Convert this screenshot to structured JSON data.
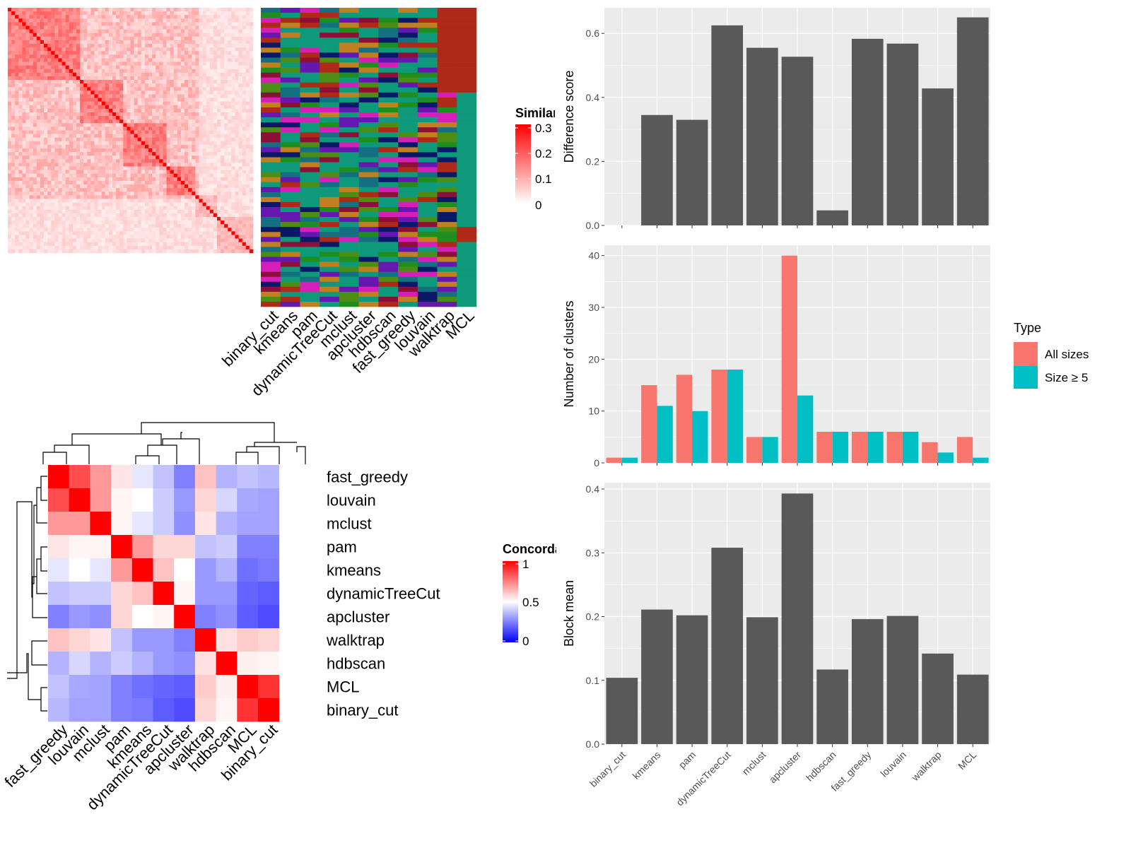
{
  "colors": {
    "panel_bg": "#EBEBEB",
    "grid": "#FFFFFF",
    "bar": "#595959",
    "all_sizes": "#F8766D",
    "size_ge5": "#00BFC4",
    "sim_high": "#FF0000",
    "conc_low": "#0000FF",
    "conc_mid": "#FFFFFF",
    "conc_high": "#FF0000"
  },
  "similarity_heatmap": {
    "legend_title": "Similarity",
    "legend_ticks": [
      "0.3",
      "0.2",
      "0.1",
      "0"
    ],
    "methods": [
      "binary_cut",
      "kmeans",
      "pam",
      "dynamicTreeCut",
      "mclust",
      "apcluster",
      "hdbscan",
      "fast_greedy",
      "louvain",
      "walktrap",
      "MCL"
    ]
  },
  "concordance_heatmap": {
    "legend_title": "Concordance",
    "legend_ticks": [
      "1",
      "0.5",
      "0"
    ],
    "rows": [
      "fast_greedy",
      "louvain",
      "mclust",
      "pam",
      "kmeans",
      "dynamicTreeCut",
      "apcluster",
      "walktrap",
      "hdbscan",
      "MCL",
      "binary_cut"
    ],
    "cols": [
      "fast_greedy",
      "louvain",
      "mclust",
      "pam",
      "kmeans",
      "dynamicTreeCut",
      "apcluster",
      "walktrap",
      "hdbscan",
      "MCL",
      "binary_cut"
    ],
    "values": [
      [
        1.0,
        0.85,
        0.7,
        0.55,
        0.45,
        0.38,
        0.25,
        0.62,
        0.35,
        0.38,
        0.36
      ],
      [
        0.85,
        1.0,
        0.7,
        0.52,
        0.5,
        0.4,
        0.3,
        0.58,
        0.42,
        0.33,
        0.32
      ],
      [
        0.7,
        0.7,
        1.0,
        0.52,
        0.45,
        0.4,
        0.28,
        0.55,
        0.35,
        0.32,
        0.32
      ],
      [
        0.55,
        0.52,
        0.52,
        1.0,
        0.7,
        0.58,
        0.58,
        0.38,
        0.4,
        0.25,
        0.25
      ],
      [
        0.45,
        0.5,
        0.45,
        0.7,
        1.0,
        0.62,
        0.5,
        0.3,
        0.35,
        0.22,
        0.24
      ],
      [
        0.38,
        0.4,
        0.4,
        0.58,
        0.62,
        1.0,
        0.52,
        0.3,
        0.3,
        0.2,
        0.18
      ],
      [
        0.25,
        0.3,
        0.28,
        0.58,
        0.5,
        0.52,
        1.0,
        0.25,
        0.28,
        0.18,
        0.15
      ],
      [
        0.62,
        0.58,
        0.55,
        0.38,
        0.3,
        0.3,
        0.25,
        1.0,
        0.56,
        0.6,
        0.58
      ],
      [
        0.35,
        0.42,
        0.35,
        0.4,
        0.35,
        0.3,
        0.28,
        0.56,
        1.0,
        0.53,
        0.52
      ],
      [
        0.38,
        0.33,
        0.32,
        0.25,
        0.22,
        0.2,
        0.18,
        0.6,
        0.53,
        1.0,
        0.9
      ],
      [
        0.36,
        0.32,
        0.32,
        0.25,
        0.24,
        0.18,
        0.15,
        0.58,
        0.52,
        0.9,
        1.0
      ]
    ]
  },
  "chart_data": [
    {
      "type": "bar",
      "categories": [
        "binary_cut",
        "kmeans",
        "pam",
        "dynamicTreeCut",
        "mclust",
        "apcluster",
        "hdbscan",
        "fast_greedy",
        "louvain",
        "walktrap",
        "MCL"
      ],
      "values": [
        0.0,
        0.345,
        0.33,
        0.625,
        0.555,
        0.527,
        0.047,
        0.583,
        0.568,
        0.428,
        0.65
      ],
      "ylabel": "Difference score",
      "ylim": [
        0,
        0.68
      ],
      "yticks": [
        "0.0",
        "0.2",
        "0.4",
        "0.6"
      ],
      "grid": true
    },
    {
      "type": "bar",
      "categories": [
        "binary_cut",
        "kmeans",
        "pam",
        "dynamicTreeCut",
        "mclust",
        "apcluster",
        "hdbscan",
        "fast_greedy",
        "louvain",
        "walktrap",
        "MCL"
      ],
      "series": [
        {
          "name": "All sizes",
          "values": [
            1,
            15,
            17,
            18,
            5,
            40,
            6,
            6,
            6,
            4,
            5
          ]
        },
        {
          "name": "Size ≥ 5",
          "values": [
            1,
            11,
            10,
            18,
            5,
            13,
            6,
            6,
            6,
            2,
            1
          ]
        }
      ],
      "ylabel": "Number of clusters",
      "ylim": [
        0,
        42
      ],
      "yticks": [
        "0",
        "10",
        "20",
        "30",
        "40"
      ],
      "legend_title": "Type",
      "legend_position": "right",
      "grid": true
    },
    {
      "type": "bar",
      "categories": [
        "binary_cut",
        "kmeans",
        "pam",
        "dynamicTreeCut",
        "mclust",
        "apcluster",
        "hdbscan",
        "fast_greedy",
        "louvain",
        "walktrap",
        "MCL"
      ],
      "values": [
        0.104,
        0.211,
        0.202,
        0.308,
        0.199,
        0.393,
        0.117,
        0.196,
        0.201,
        0.142,
        0.109
      ],
      "ylabel": "Block mean",
      "ylim": [
        0,
        0.41
      ],
      "yticks": [
        "0.0",
        "0.1",
        "0.2",
        "0.3",
        "0.4"
      ],
      "grid": true
    }
  ]
}
